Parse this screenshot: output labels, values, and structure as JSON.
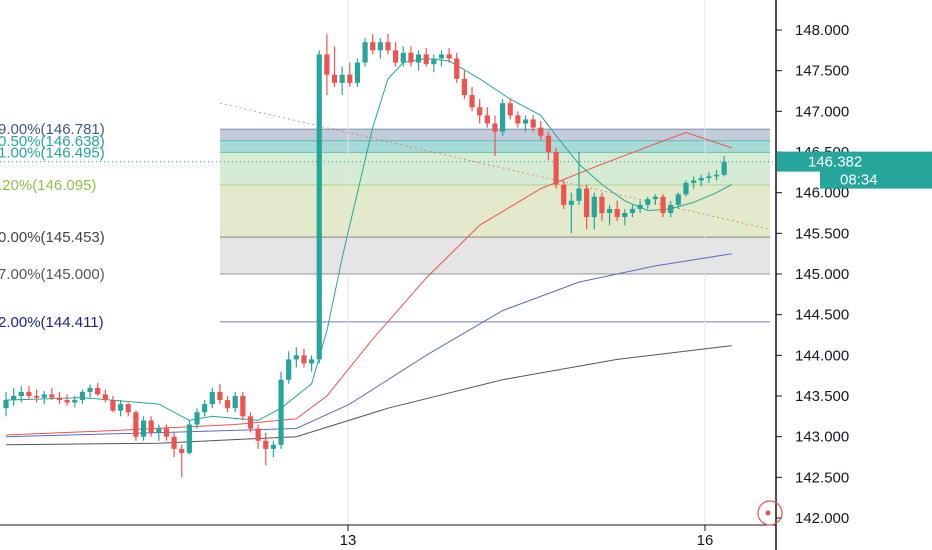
{
  "chart_data": {
    "type": "candlestick",
    "y_axis": {
      "ticks": [
        "148.000",
        "147.500",
        "147.000",
        "146.500",
        "146.000",
        "145.500",
        "145.000",
        "144.500",
        "144.000",
        "143.500",
        "143.000",
        "142.500",
        "142.000"
      ],
      "tick_values": [
        148.0,
        147.5,
        147.0,
        146.5,
        146.0,
        145.5,
        145.0,
        144.5,
        144.0,
        143.5,
        143.0,
        142.5,
        142.0
      ],
      "range": [
        141.95,
        148.35
      ]
    },
    "x_axis": {
      "labels": [
        "13",
        "16"
      ]
    },
    "last_price": {
      "label": "146.382",
      "value": 146.382,
      "color": "#26a69a"
    },
    "countdown": {
      "label": "08:34"
    },
    "colors": {
      "up": "#26a69a",
      "down": "#ef5350"
    },
    "fib_levels": [
      {
        "label": "9.00%(146.781)",
        "value": 146.781,
        "color": "#3d5a80"
      },
      {
        "label": "0.50%(146.638)",
        "value": 146.638,
        "color": "#26a69a"
      },
      {
        "label": "1.00%(146.495)",
        "value": 146.495,
        "color": "#26a69a"
      },
      {
        "label": ".20%(146.095)",
        "value": 146.095,
        "color": "#8bc34a"
      },
      {
        "label": "0.00%(145.453)",
        "value": 145.453,
        "color": "#444444"
      },
      {
        "label": "7.00%(145.000)",
        "value": 145.0,
        "color": "#555555"
      },
      {
        "label": "2.00%(144.411)",
        "value": 144.411,
        "color": "#1a237e"
      }
    ],
    "fib_zone_colors": [
      "rgba(80,110,150,0.35)",
      "rgba(38,166,154,0.40)",
      "rgba(120,190,110,0.30)",
      "rgba(150,180,70,0.28)",
      "rgba(180,180,180,0.35)",
      "rgba(255,255,255,0)",
      "rgba(120,120,230,0.30)"
    ],
    "candles": [
      [
        143.35,
        143.55,
        143.25,
        143.45
      ],
      [
        143.45,
        143.6,
        143.38,
        143.5
      ],
      [
        143.5,
        143.62,
        143.42,
        143.55
      ],
      [
        143.55,
        143.62,
        143.45,
        143.5
      ],
      [
        143.5,
        143.58,
        143.42,
        143.48
      ],
      [
        143.48,
        143.56,
        143.4,
        143.52
      ],
      [
        143.52,
        143.6,
        143.45,
        143.48
      ],
      [
        143.48,
        143.55,
        143.4,
        143.45
      ],
      [
        143.45,
        143.52,
        143.38,
        143.42
      ],
      [
        143.42,
        143.5,
        143.36,
        143.45
      ],
      [
        143.45,
        143.58,
        143.4,
        143.55
      ],
      [
        143.55,
        143.64,
        143.48,
        143.6
      ],
      [
        143.6,
        143.66,
        143.5,
        143.52
      ],
      [
        143.52,
        143.58,
        143.42,
        143.45
      ],
      [
        143.45,
        143.5,
        143.3,
        143.32
      ],
      [
        143.32,
        143.45,
        143.25,
        143.4
      ],
      [
        143.4,
        143.42,
        143.25,
        143.3
      ],
      [
        143.3,
        143.32,
        142.95,
        143.0
      ],
      [
        143.0,
        143.25,
        142.95,
        143.2
      ],
      [
        143.2,
        143.25,
        143.0,
        143.05
      ],
      [
        143.05,
        143.15,
        142.95,
        143.1
      ],
      [
        143.1,
        143.15,
        142.95,
        143.0
      ],
      [
        143.0,
        143.05,
        142.75,
        142.85
      ],
      [
        142.85,
        142.9,
        142.5,
        142.8
      ],
      [
        142.8,
        143.2,
        142.78,
        143.15
      ],
      [
        143.15,
        143.35,
        143.1,
        143.3
      ],
      [
        143.3,
        143.45,
        143.25,
        143.4
      ],
      [
        143.4,
        143.6,
        143.35,
        143.55
      ],
      [
        143.55,
        143.65,
        143.4,
        143.45
      ],
      [
        143.45,
        143.5,
        143.3,
        143.35
      ],
      [
        143.35,
        143.55,
        143.3,
        143.5
      ],
      [
        143.5,
        143.55,
        143.2,
        143.25
      ],
      [
        143.25,
        143.3,
        143.05,
        143.1
      ],
      [
        143.1,
        143.15,
        142.85,
        142.95
      ],
      [
        142.95,
        143.05,
        142.65,
        142.85
      ],
      [
        142.85,
        142.95,
        142.75,
        142.9
      ],
      [
        142.9,
        143.8,
        142.85,
        143.7
      ],
      [
        143.7,
        144.05,
        143.65,
        143.95
      ],
      [
        143.95,
        144.1,
        143.85,
        144.0
      ],
      [
        144.0,
        144.08,
        143.85,
        143.9
      ],
      [
        143.9,
        144.0,
        143.8,
        143.95
      ],
      [
        143.95,
        147.75,
        143.9,
        147.7
      ],
      [
        147.7,
        147.95,
        147.2,
        147.45
      ],
      [
        147.45,
        147.8,
        147.3,
        147.35
      ],
      [
        147.35,
        147.55,
        147.2,
        147.45
      ],
      [
        147.45,
        147.6,
        147.3,
        147.35
      ],
      [
        147.35,
        147.65,
        147.3,
        147.6
      ],
      [
        147.6,
        147.9,
        147.55,
        147.85
      ],
      [
        147.85,
        147.95,
        147.7,
        147.75
      ],
      [
        147.75,
        147.9,
        147.65,
        147.85
      ],
      [
        147.85,
        147.95,
        147.7,
        147.75
      ],
      [
        147.75,
        147.85,
        147.55,
        147.6
      ],
      [
        147.6,
        147.8,
        147.55,
        147.72
      ],
      [
        147.72,
        147.8,
        147.55,
        147.6
      ],
      [
        147.6,
        147.75,
        147.5,
        147.7
      ],
      [
        147.7,
        147.78,
        147.55,
        147.58
      ],
      [
        147.58,
        147.7,
        147.48,
        147.65
      ],
      [
        147.65,
        147.75,
        147.55,
        147.7
      ],
      [
        147.7,
        147.78,
        147.6,
        147.65
      ],
      [
        147.65,
        147.72,
        147.35,
        147.4
      ],
      [
        147.4,
        147.5,
        147.15,
        147.2
      ],
      [
        147.2,
        147.3,
        147.0,
        147.05
      ],
      [
        147.05,
        147.15,
        146.85,
        146.95
      ],
      [
        146.95,
        147.05,
        146.8,
        146.85
      ],
      [
        146.85,
        146.95,
        146.45,
        146.75
      ],
      [
        146.75,
        147.15,
        146.7,
        147.1
      ],
      [
        147.1,
        147.15,
        146.9,
        146.95
      ],
      [
        146.95,
        147.0,
        146.8,
        146.85
      ],
      [
        146.85,
        146.95,
        146.75,
        146.9
      ],
      [
        146.9,
        146.95,
        146.75,
        146.8
      ],
      [
        146.8,
        146.88,
        146.65,
        146.7
      ],
      [
        146.7,
        146.75,
        146.4,
        146.5
      ],
      [
        146.5,
        146.55,
        146.05,
        146.1
      ],
      [
        146.1,
        146.15,
        145.8,
        145.85
      ],
      [
        145.85,
        146.0,
        145.5,
        145.9
      ],
      [
        145.9,
        146.5,
        145.85,
        146.05
      ],
      [
        146.05,
        146.1,
        145.55,
        145.7
      ],
      [
        145.7,
        146.0,
        145.55,
        145.95
      ],
      [
        145.95,
        146.0,
        145.65,
        145.75
      ],
      [
        145.75,
        145.85,
        145.6,
        145.8
      ],
      [
        145.8,
        145.9,
        145.65,
        145.7
      ],
      [
        145.7,
        145.8,
        145.6,
        145.75
      ],
      [
        145.75,
        145.85,
        145.7,
        145.8
      ],
      [
        145.8,
        145.9,
        145.75,
        145.85
      ],
      [
        145.85,
        145.95,
        145.8,
        145.92
      ],
      [
        145.92,
        145.98,
        145.85,
        145.95
      ],
      [
        145.95,
        145.98,
        145.7,
        145.75
      ],
      [
        145.75,
        145.9,
        145.7,
        145.85
      ],
      [
        145.85,
        146.0,
        145.8,
        145.98
      ],
      [
        145.98,
        146.15,
        145.95,
        146.12
      ],
      [
        146.12,
        146.2,
        146.05,
        146.15
      ],
      [
        146.15,
        146.22,
        146.08,
        146.18
      ],
      [
        146.18,
        146.25,
        146.12,
        146.2
      ],
      [
        146.2,
        146.28,
        146.15,
        146.22
      ],
      [
        146.22,
        146.45,
        146.2,
        146.38
      ]
    ],
    "lines": [
      {
        "color": "#26a69a",
        "points": [
          [
            0,
            143.45
          ],
          [
            10,
            143.48
          ],
          [
            20,
            143.4
          ],
          [
            24,
            143.2
          ],
          [
            27,
            143.25
          ],
          [
            33,
            143.2
          ],
          [
            36,
            143.35
          ],
          [
            40,
            143.65
          ],
          [
            42,
            144.3
          ],
          [
            44,
            145.2
          ],
          [
            46,
            146.0
          ],
          [
            48,
            146.8
          ],
          [
            50,
            147.4
          ],
          [
            52,
            147.6
          ],
          [
            55,
            147.65
          ],
          [
            58,
            147.62
          ],
          [
            62,
            147.4
          ],
          [
            66,
            147.15
          ],
          [
            70,
            146.95
          ],
          [
            72,
            146.7
          ],
          [
            75,
            146.35
          ],
          [
            78,
            146.1
          ],
          [
            81,
            145.9
          ],
          [
            84,
            145.78
          ],
          [
            87,
            145.8
          ],
          [
            90,
            145.88
          ],
          [
            93,
            146.0
          ],
          [
            95,
            146.1
          ]
        ]
      },
      {
        "color": "#ef5350",
        "points": [
          [
            0,
            143.02
          ],
          [
            15,
            143.08
          ],
          [
            30,
            143.15
          ],
          [
            38,
            143.22
          ],
          [
            42,
            143.5
          ],
          [
            48,
            144.2
          ],
          [
            55,
            144.95
          ],
          [
            62,
            145.6
          ],
          [
            70,
            146.05
          ],
          [
            78,
            146.35
          ],
          [
            85,
            146.6
          ],
          [
            89,
            146.74
          ],
          [
            95,
            146.55
          ]
        ]
      },
      {
        "color": "#5c6bc0",
        "points": [
          [
            0,
            143.0
          ],
          [
            20,
            143.05
          ],
          [
            38,
            143.1
          ],
          [
            45,
            143.4
          ],
          [
            55,
            144.0
          ],
          [
            65,
            144.55
          ],
          [
            75,
            144.9
          ],
          [
            85,
            145.1
          ],
          [
            95,
            145.25
          ]
        ]
      },
      {
        "color": "#555555",
        "points": [
          [
            0,
            142.9
          ],
          [
            20,
            142.92
          ],
          [
            38,
            143.0
          ],
          [
            50,
            143.35
          ],
          [
            65,
            143.7
          ],
          [
            80,
            143.95
          ],
          [
            95,
            144.12
          ]
        ]
      }
    ],
    "diagonal_line": {
      "color": "#e06060",
      "points": [
        [
          28,
          147.1
        ],
        [
          100,
          145.55
        ]
      ]
    }
  }
}
